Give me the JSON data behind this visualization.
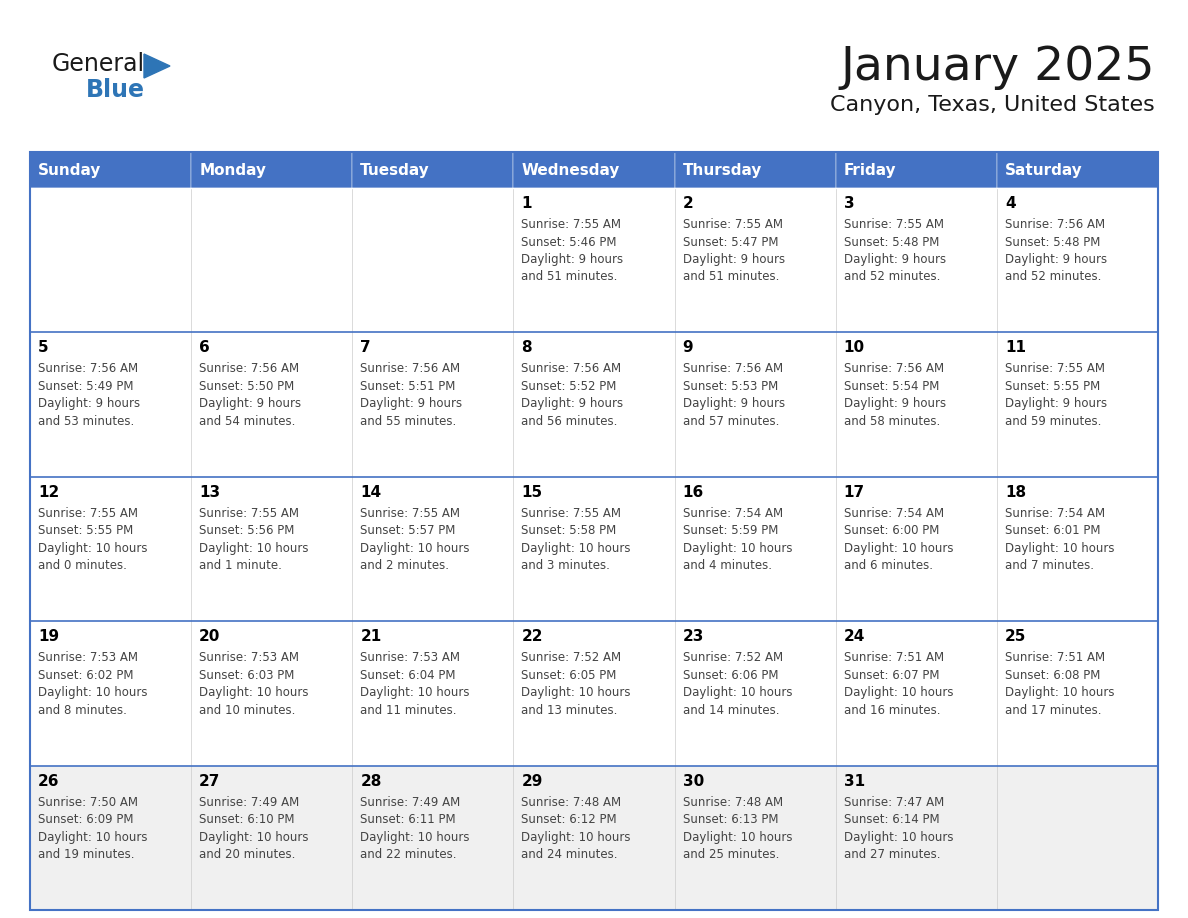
{
  "title": "January 2025",
  "subtitle": "Canyon, Texas, United States",
  "header_color": "#4472C4",
  "header_text_color": "#FFFFFF",
  "day_names": [
    "Sunday",
    "Monday",
    "Tuesday",
    "Wednesday",
    "Thursday",
    "Friday",
    "Saturday"
  ],
  "row_color": "#FFFFFF",
  "last_row_color": "#F0F0F0",
  "border_color": "#4472C4",
  "day_num_color": "#000000",
  "cell_text_color": "#444444",
  "weeks": [
    {
      "days": [
        {
          "day": null,
          "info": null
        },
        {
          "day": null,
          "info": null
        },
        {
          "day": null,
          "info": null
        },
        {
          "day": 1,
          "info": "Sunrise: 7:55 AM\nSunset: 5:46 PM\nDaylight: 9 hours\nand 51 minutes."
        },
        {
          "day": 2,
          "info": "Sunrise: 7:55 AM\nSunset: 5:47 PM\nDaylight: 9 hours\nand 51 minutes."
        },
        {
          "day": 3,
          "info": "Sunrise: 7:55 AM\nSunset: 5:48 PM\nDaylight: 9 hours\nand 52 minutes."
        },
        {
          "day": 4,
          "info": "Sunrise: 7:56 AM\nSunset: 5:48 PM\nDaylight: 9 hours\nand 52 minutes."
        }
      ]
    },
    {
      "days": [
        {
          "day": 5,
          "info": "Sunrise: 7:56 AM\nSunset: 5:49 PM\nDaylight: 9 hours\nand 53 minutes."
        },
        {
          "day": 6,
          "info": "Sunrise: 7:56 AM\nSunset: 5:50 PM\nDaylight: 9 hours\nand 54 minutes."
        },
        {
          "day": 7,
          "info": "Sunrise: 7:56 AM\nSunset: 5:51 PM\nDaylight: 9 hours\nand 55 minutes."
        },
        {
          "day": 8,
          "info": "Sunrise: 7:56 AM\nSunset: 5:52 PM\nDaylight: 9 hours\nand 56 minutes."
        },
        {
          "day": 9,
          "info": "Sunrise: 7:56 AM\nSunset: 5:53 PM\nDaylight: 9 hours\nand 57 minutes."
        },
        {
          "day": 10,
          "info": "Sunrise: 7:56 AM\nSunset: 5:54 PM\nDaylight: 9 hours\nand 58 minutes."
        },
        {
          "day": 11,
          "info": "Sunrise: 7:55 AM\nSunset: 5:55 PM\nDaylight: 9 hours\nand 59 minutes."
        }
      ]
    },
    {
      "days": [
        {
          "day": 12,
          "info": "Sunrise: 7:55 AM\nSunset: 5:55 PM\nDaylight: 10 hours\nand 0 minutes."
        },
        {
          "day": 13,
          "info": "Sunrise: 7:55 AM\nSunset: 5:56 PM\nDaylight: 10 hours\nand 1 minute."
        },
        {
          "day": 14,
          "info": "Sunrise: 7:55 AM\nSunset: 5:57 PM\nDaylight: 10 hours\nand 2 minutes."
        },
        {
          "day": 15,
          "info": "Sunrise: 7:55 AM\nSunset: 5:58 PM\nDaylight: 10 hours\nand 3 minutes."
        },
        {
          "day": 16,
          "info": "Sunrise: 7:54 AM\nSunset: 5:59 PM\nDaylight: 10 hours\nand 4 minutes."
        },
        {
          "day": 17,
          "info": "Sunrise: 7:54 AM\nSunset: 6:00 PM\nDaylight: 10 hours\nand 6 minutes."
        },
        {
          "day": 18,
          "info": "Sunrise: 7:54 AM\nSunset: 6:01 PM\nDaylight: 10 hours\nand 7 minutes."
        }
      ]
    },
    {
      "days": [
        {
          "day": 19,
          "info": "Sunrise: 7:53 AM\nSunset: 6:02 PM\nDaylight: 10 hours\nand 8 minutes."
        },
        {
          "day": 20,
          "info": "Sunrise: 7:53 AM\nSunset: 6:03 PM\nDaylight: 10 hours\nand 10 minutes."
        },
        {
          "day": 21,
          "info": "Sunrise: 7:53 AM\nSunset: 6:04 PM\nDaylight: 10 hours\nand 11 minutes."
        },
        {
          "day": 22,
          "info": "Sunrise: 7:52 AM\nSunset: 6:05 PM\nDaylight: 10 hours\nand 13 minutes."
        },
        {
          "day": 23,
          "info": "Sunrise: 7:52 AM\nSunset: 6:06 PM\nDaylight: 10 hours\nand 14 minutes."
        },
        {
          "day": 24,
          "info": "Sunrise: 7:51 AM\nSunset: 6:07 PM\nDaylight: 10 hours\nand 16 minutes."
        },
        {
          "day": 25,
          "info": "Sunrise: 7:51 AM\nSunset: 6:08 PM\nDaylight: 10 hours\nand 17 minutes."
        }
      ]
    },
    {
      "days": [
        {
          "day": 26,
          "info": "Sunrise: 7:50 AM\nSunset: 6:09 PM\nDaylight: 10 hours\nand 19 minutes."
        },
        {
          "day": 27,
          "info": "Sunrise: 7:49 AM\nSunset: 6:10 PM\nDaylight: 10 hours\nand 20 minutes."
        },
        {
          "day": 28,
          "info": "Sunrise: 7:49 AM\nSunset: 6:11 PM\nDaylight: 10 hours\nand 22 minutes."
        },
        {
          "day": 29,
          "info": "Sunrise: 7:48 AM\nSunset: 6:12 PM\nDaylight: 10 hours\nand 24 minutes."
        },
        {
          "day": 30,
          "info": "Sunrise: 7:48 AM\nSunset: 6:13 PM\nDaylight: 10 hours\nand 25 minutes."
        },
        {
          "day": 31,
          "info": "Sunrise: 7:47 AM\nSunset: 6:14 PM\nDaylight: 10 hours\nand 27 minutes."
        },
        {
          "day": null,
          "info": null
        }
      ]
    }
  ],
  "logo_text_general": "General",
  "logo_text_blue": "Blue",
  "logo_color_general": "#1a1a1a",
  "logo_color_blue": "#2E75B6",
  "logo_triangle_color": "#2E75B6",
  "title_fontsize": 34,
  "subtitle_fontsize": 16,
  "header_fontsize": 11,
  "day_num_fontsize": 11,
  "cell_text_fontsize": 8.5
}
